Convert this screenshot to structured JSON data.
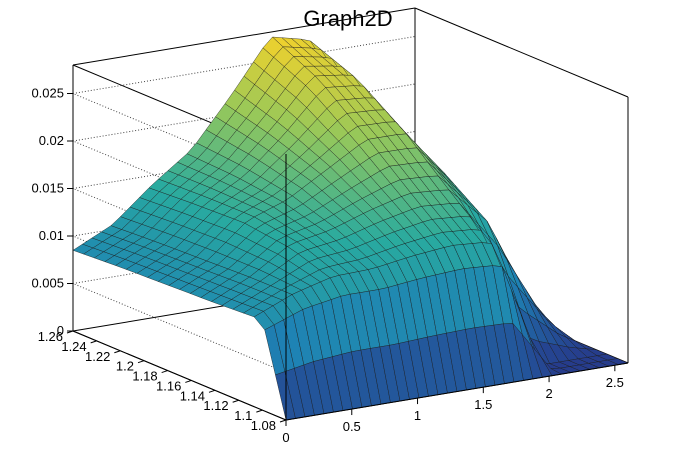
{
  "chart_data": {
    "type": "surface3d",
    "title": "Graph2D",
    "xlabel": "",
    "ylabel": "",
    "zlabel": "",
    "xlim": [
      0,
      2.6
    ],
    "ylim": [
      1.08,
      1.26
    ],
    "zlim": [
      0,
      0.028
    ],
    "x_ticks": [
      "0",
      "0.5",
      "1",
      "1.5",
      "2",
      "2.5"
    ],
    "y_ticks": [
      "1.08",
      "1.1",
      "1.12",
      "1.14",
      "1.16",
      "1.18",
      "1.2",
      "1.22",
      "1.24",
      "1.26"
    ],
    "z_ticks": [
      "0",
      "0.005",
      "0.01",
      "0.015",
      "0.02",
      "0.025"
    ],
    "grid": true,
    "colormap": "viridis-like (dark blue to yellow)",
    "surface_rows": [
      {
        "y": 1.26,
        "x": [
          0.0,
          0.3,
          0.6,
          0.9,
          1.2,
          1.5,
          1.8,
          2.1,
          2.4,
          2.6
        ],
        "z": [
          0.0085,
          0.0105,
          0.014,
          0.017,
          0.022,
          0.0275,
          0.0265,
          0.019,
          0.006,
          0.0
        ]
      },
      {
        "y": 1.22,
        "x": [
          0.0,
          0.3,
          0.6,
          0.9,
          1.2,
          1.5,
          1.8,
          2.1,
          2.4,
          2.6
        ],
        "z": [
          0.0088,
          0.0108,
          0.0143,
          0.0167,
          0.0205,
          0.025,
          0.0245,
          0.018,
          0.0055,
          0.0
        ]
      },
      {
        "y": 1.18,
        "x": [
          0.0,
          0.3,
          0.6,
          0.9,
          1.2,
          1.5,
          1.8,
          2.1,
          2.4,
          2.6
        ],
        "z": [
          0.009,
          0.011,
          0.0145,
          0.016,
          0.0185,
          0.021,
          0.021,
          0.016,
          0.005,
          0.0
        ]
      },
      {
        "y": 1.14,
        "x": [
          0.0,
          0.3,
          0.6,
          0.9,
          1.2,
          1.5,
          1.8,
          2.1,
          2.4,
          2.6
        ],
        "z": [
          0.0092,
          0.0112,
          0.0138,
          0.0145,
          0.0158,
          0.0168,
          0.0165,
          0.0125,
          0.004,
          0.0
        ]
      },
      {
        "y": 1.1,
        "x": [
          0.0,
          0.3,
          0.6,
          0.9,
          1.2,
          1.5,
          1.8,
          2.1,
          2.4,
          2.6
        ],
        "z": [
          0.0095,
          0.0112,
          0.012,
          0.012,
          0.0125,
          0.0128,
          0.0125,
          0.0,
          0.0,
          0.0
        ]
      },
      {
        "y": 1.08,
        "x": [
          0.0,
          0.3,
          0.6,
          0.9,
          1.2,
          1.5,
          1.8,
          2.1,
          2.4,
          2.6
        ],
        "z": [
          0.0,
          0.0,
          0.0,
          0.0,
          0.0,
          0.0,
          0.0,
          0.0,
          0.0,
          0.0
        ]
      }
    ]
  }
}
